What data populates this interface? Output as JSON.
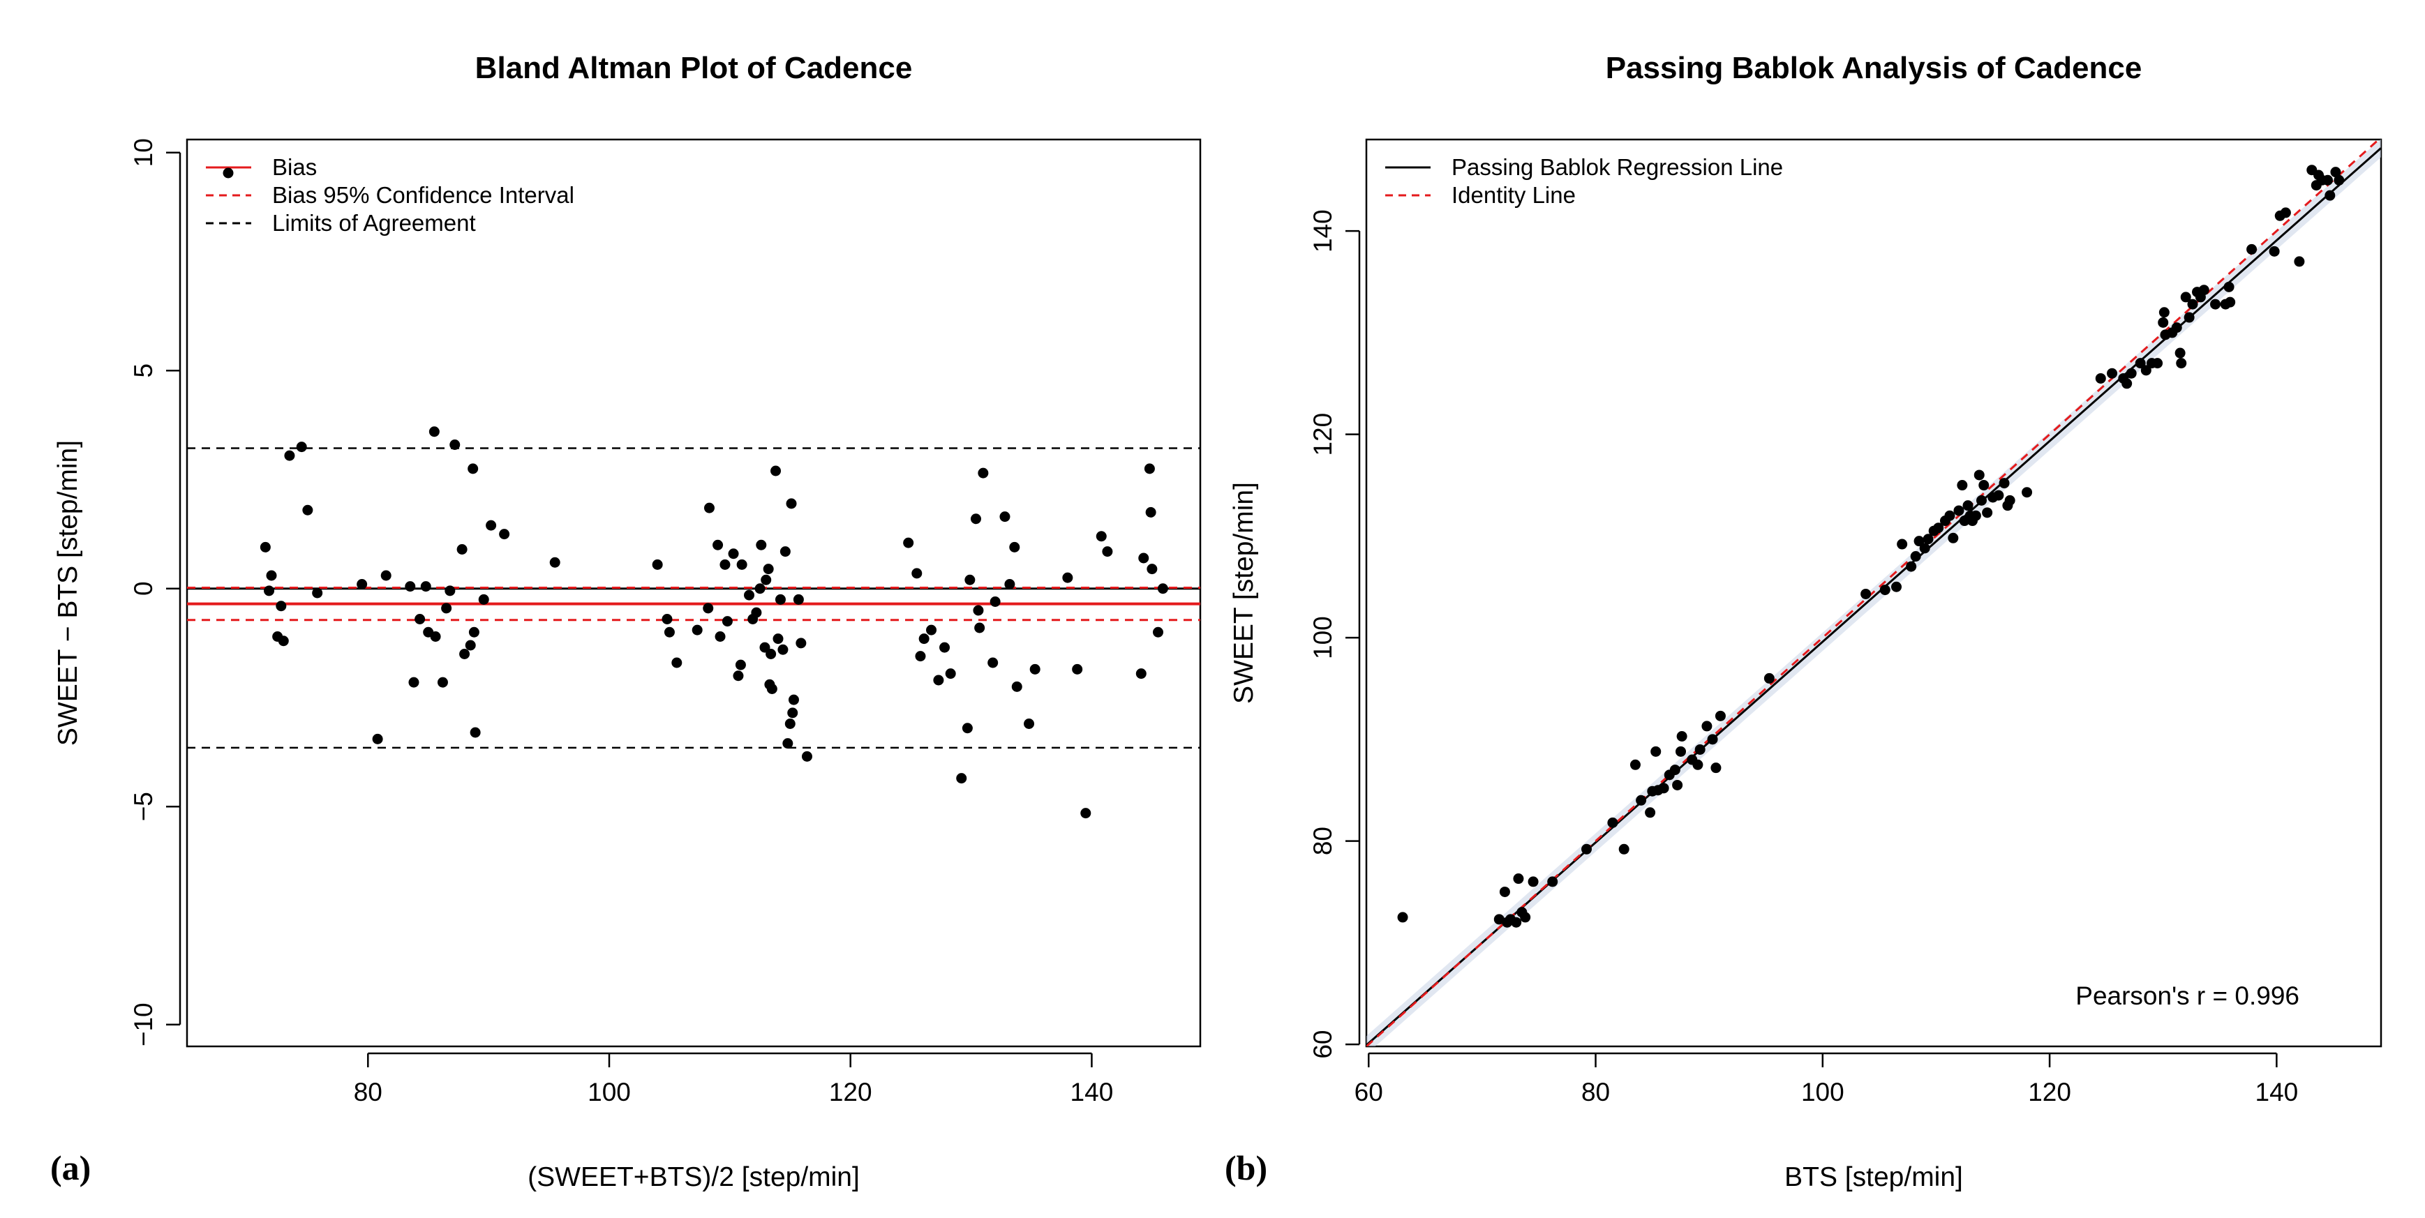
{
  "panels": [
    {
      "label": "(a)"
    },
    {
      "label": "(b)"
    }
  ],
  "chart_data": [
    {
      "id": "bland-altman",
      "type": "scatter",
      "title": "Bland Altman Plot of Cadence",
      "xlabel": "(SWEET+BTS)/2 [step/min]",
      "ylabel": "SWEET − BTS [step/min]",
      "xlim": [
        65,
        149
      ],
      "ylim": [
        -10.5,
        10.3
      ],
      "xticks": [
        80,
        100,
        120,
        140
      ],
      "yticks": [
        -10,
        -5,
        0,
        5,
        10
      ],
      "xtick_labels": [
        "80",
        "100",
        "120",
        "140"
      ],
      "ytick_labels": [
        "−10",
        "−5",
        "0",
        "5",
        "10"
      ],
      "grid": false,
      "legend_position": "top-left",
      "legend": [
        {
          "label": "Bias",
          "style": "solid",
          "color": "#e41a1c",
          "marker": true
        },
        {
          "label": "Bias 95% Confidence Interval",
          "style": "dashed",
          "color": "#e41a1c",
          "marker": false
        },
        {
          "label": "Limits of Agreement",
          "style": "dashed",
          "color": "#000000",
          "marker": false
        }
      ],
      "reference_lines": {
        "zero": 0,
        "bias": -0.35,
        "bias_ci": [
          -0.72,
          0.02
        ],
        "limits_of_agreement": [
          -3.65,
          3.22
        ]
      },
      "colors": {
        "bias": "#e41a1c",
        "points": "#000000",
        "loa": "#000000"
      },
      "points": [
        [
          71.5,
          0.95
        ],
        [
          71.8,
          -0.05
        ],
        [
          72.0,
          0.3
        ],
        [
          72.5,
          -1.1
        ],
        [
          72.8,
          -0.4
        ],
        [
          73.0,
          -1.2
        ],
        [
          73.5,
          3.05
        ],
        [
          74.5,
          3.25
        ],
        [
          75.0,
          1.8
        ],
        [
          75.8,
          -0.1
        ],
        [
          79.5,
          0.1
        ],
        [
          80.8,
          -3.45
        ],
        [
          81.5,
          0.3
        ],
        [
          83.5,
          0.05
        ],
        [
          83.8,
          -2.15
        ],
        [
          84.3,
          -0.7
        ],
        [
          84.8,
          0.05
        ],
        [
          85.0,
          -1.0
        ],
        [
          85.5,
          3.6
        ],
        [
          85.6,
          -1.1
        ],
        [
          86.2,
          -2.15
        ],
        [
          86.5,
          -0.45
        ],
        [
          86.8,
          -0.05
        ],
        [
          87.2,
          3.3
        ],
        [
          87.8,
          0.9
        ],
        [
          88.0,
          -1.5
        ],
        [
          88.5,
          -1.3
        ],
        [
          88.7,
          2.75
        ],
        [
          88.8,
          -1.0
        ],
        [
          88.9,
          -3.3
        ],
        [
          89.6,
          -0.25
        ],
        [
          90.2,
          1.45
        ],
        [
          91.3,
          1.25
        ],
        [
          95.5,
          0.6
        ],
        [
          104.0,
          0.55
        ],
        [
          104.8,
          -0.7
        ],
        [
          105.0,
          -1.0
        ],
        [
          105.6,
          -1.7
        ],
        [
          107.3,
          -0.95
        ],
        [
          108.2,
          -0.45
        ],
        [
          108.3,
          1.85
        ],
        [
          109.0,
          1.0
        ],
        [
          109.2,
          -1.1
        ],
        [
          109.6,
          0.55
        ],
        [
          109.8,
          -0.75
        ],
        [
          110.3,
          0.8
        ],
        [
          110.7,
          -2.0
        ],
        [
          110.9,
          -1.75
        ],
        [
          111.0,
          0.55
        ],
        [
          111.6,
          -0.15
        ],
        [
          111.9,
          -0.7
        ],
        [
          112.2,
          -0.55
        ],
        [
          112.5,
          0.0
        ],
        [
          112.6,
          1.0
        ],
        [
          112.9,
          -1.35
        ],
        [
          113.0,
          0.2
        ],
        [
          113.2,
          0.45
        ],
        [
          113.3,
          -2.2
        ],
        [
          113.4,
          -1.5
        ],
        [
          113.5,
          -2.3
        ],
        [
          113.8,
          2.7
        ],
        [
          114.0,
          -1.15
        ],
        [
          114.2,
          -0.25
        ],
        [
          114.4,
          -1.4
        ],
        [
          114.6,
          0.85
        ],
        [
          114.8,
          -3.55
        ],
        [
          115.0,
          -3.1
        ],
        [
          115.1,
          1.95
        ],
        [
          115.2,
          -2.85
        ],
        [
          115.3,
          -2.55
        ],
        [
          115.7,
          -0.25
        ],
        [
          115.9,
          -1.25
        ],
        [
          116.4,
          -3.85
        ],
        [
          124.8,
          1.05
        ],
        [
          125.5,
          0.35
        ],
        [
          125.8,
          -1.55
        ],
        [
          126.1,
          -1.15
        ],
        [
          126.7,
          -0.95
        ],
        [
          127.3,
          -2.1
        ],
        [
          127.8,
          -1.35
        ],
        [
          128.3,
          -1.95
        ],
        [
          129.2,
          -4.35
        ],
        [
          129.7,
          -3.2
        ],
        [
          129.9,
          0.2
        ],
        [
          130.4,
          1.6
        ],
        [
          130.6,
          -0.5
        ],
        [
          130.7,
          -0.9
        ],
        [
          131.0,
          2.65
        ],
        [
          131.8,
          -1.7
        ],
        [
          132.0,
          -0.3
        ],
        [
          132.8,
          1.65
        ],
        [
          133.2,
          0.1
        ],
        [
          133.6,
          0.95
        ],
        [
          133.8,
          -2.25
        ],
        [
          134.8,
          -3.1
        ],
        [
          135.3,
          -1.85
        ],
        [
          138.0,
          0.25
        ],
        [
          138.8,
          -1.85
        ],
        [
          139.5,
          -5.15
        ],
        [
          140.8,
          1.2
        ],
        [
          141.3,
          0.85
        ],
        [
          144.1,
          -1.95
        ],
        [
          144.3,
          0.7
        ],
        [
          144.8,
          2.75
        ],
        [
          144.9,
          1.75
        ],
        [
          145.0,
          0.45
        ],
        [
          145.5,
          -1.0
        ],
        [
          145.9,
          0.0
        ]
      ]
    },
    {
      "id": "passing-bablok",
      "type": "scatter",
      "title": "Passing Bablok Analysis of Cadence",
      "xlabel": "BTS [step/min]",
      "ylabel": "SWEET [step/min]",
      "xlim": [
        59.8,
        149.2
      ],
      "ylim": [
        59.8,
        149.0
      ],
      "xticks": [
        60,
        80,
        100,
        120,
        140
      ],
      "yticks": [
        60,
        80,
        100,
        120,
        140
      ],
      "xtick_labels": [
        "60",
        "80",
        "100",
        "120",
        "140"
      ],
      "ytick_labels": [
        "60",
        "80",
        "100",
        "120",
        "140"
      ],
      "grid": false,
      "legend_position": "top-left",
      "legend": [
        {
          "label": "Passing Bablok Regression Line",
          "style": "solid",
          "color": "#000000"
        },
        {
          "label": "Identity Line",
          "style": "dashed",
          "color": "#e41a1c"
        }
      ],
      "regression": {
        "slope": 0.987,
        "intercept": 0.9
      },
      "identity": {
        "slope": 1,
        "intercept": 0
      },
      "annotation": "Pearson's r = 0.996",
      "colors": {
        "regression": "#000000",
        "identity": "#e41a1c",
        "band": "#c9d3e6",
        "points": "#000000"
      },
      "points": [
        [
          63.0,
          72.5
        ],
        [
          71.5,
          72.3
        ],
        [
          72.0,
          75.0
        ],
        [
          72.2,
          72.0
        ],
        [
          72.5,
          72.3
        ],
        [
          73.0,
          72.0
        ],
        [
          73.2,
          76.3
        ],
        [
          73.5,
          73.0
        ],
        [
          73.8,
          72.5
        ],
        [
          74.5,
          76.0
        ],
        [
          76.2,
          76.0
        ],
        [
          79.2,
          79.2
        ],
        [
          81.5,
          81.8
        ],
        [
          82.5,
          79.2
        ],
        [
          83.5,
          87.5
        ],
        [
          84.0,
          84.0
        ],
        [
          84.8,
          82.8
        ],
        [
          85.0,
          84.9
        ],
        [
          85.3,
          88.8
        ],
        [
          85.5,
          85.0
        ],
        [
          86.0,
          85.2
        ],
        [
          86.5,
          86.5
        ],
        [
          87.0,
          87.0
        ],
        [
          87.2,
          85.5
        ],
        [
          87.5,
          88.8
        ],
        [
          87.6,
          90.3
        ],
        [
          88.5,
          88.0
        ],
        [
          89.0,
          87.5
        ],
        [
          89.2,
          89.0
        ],
        [
          89.8,
          91.3
        ],
        [
          90.3,
          90.0
        ],
        [
          90.6,
          87.2
        ],
        [
          91.0,
          92.3
        ],
        [
          95.3,
          96.0
        ],
        [
          103.8,
          104.3
        ],
        [
          105.5,
          104.7
        ],
        [
          106.5,
          105.0
        ],
        [
          107.0,
          109.2
        ],
        [
          107.8,
          107.0
        ],
        [
          108.2,
          108.0
        ],
        [
          108.5,
          109.5
        ],
        [
          109.0,
          108.8
        ],
        [
          109.3,
          109.7
        ],
        [
          109.8,
          110.5
        ],
        [
          110.2,
          110.8
        ],
        [
          110.8,
          111.5
        ],
        [
          111.2,
          112.0
        ],
        [
          111.5,
          109.8
        ],
        [
          112.0,
          112.5
        ],
        [
          112.3,
          115.0
        ],
        [
          112.5,
          111.5
        ],
        [
          112.8,
          113.0
        ],
        [
          113.0,
          112.0
        ],
        [
          113.2,
          111.5
        ],
        [
          113.5,
          112.0
        ],
        [
          113.8,
          116.0
        ],
        [
          114.0,
          113.5
        ],
        [
          114.2,
          115.0
        ],
        [
          114.5,
          112.3
        ],
        [
          115.0,
          113.8
        ],
        [
          115.5,
          114.0
        ],
        [
          116.0,
          115.2
        ],
        [
          116.3,
          113.0
        ],
        [
          116.5,
          113.5
        ],
        [
          118.0,
          114.3
        ],
        [
          124.5,
          125.5
        ],
        [
          125.5,
          126.0
        ],
        [
          126.5,
          125.5
        ],
        [
          126.8,
          125.0
        ],
        [
          127.2,
          126.0
        ],
        [
          128.0,
          127.0
        ],
        [
          128.5,
          126.3
        ],
        [
          129.0,
          127.0
        ],
        [
          129.5,
          127.0
        ],
        [
          130.0,
          131.0
        ],
        [
          130.1,
          132.0
        ],
        [
          130.2,
          129.8
        ],
        [
          130.8,
          130.0
        ],
        [
          131.2,
          130.5
        ],
        [
          131.5,
          128.0
        ],
        [
          131.6,
          127.0
        ],
        [
          132.0,
          133.5
        ],
        [
          132.3,
          131.5
        ],
        [
          132.6,
          132.8
        ],
        [
          133.0,
          134.0
        ],
        [
          133.3,
          133.5
        ],
        [
          133.6,
          134.2
        ],
        [
          134.6,
          132.8
        ],
        [
          135.5,
          132.8
        ],
        [
          135.8,
          134.5
        ],
        [
          135.9,
          133.0
        ],
        [
          137.8,
          138.2
        ],
        [
          139.8,
          138.0
        ],
        [
          140.3,
          141.5
        ],
        [
          140.8,
          141.8
        ],
        [
          142.0,
          137.0
        ],
        [
          143.1,
          146.0
        ],
        [
          143.5,
          144.5
        ],
        [
          143.7,
          145.5
        ],
        [
          144.0,
          145.0
        ],
        [
          144.5,
          145.0
        ],
        [
          144.7,
          143.5
        ],
        [
          145.2,
          145.8
        ],
        [
          145.5,
          145.0
        ]
      ]
    }
  ]
}
